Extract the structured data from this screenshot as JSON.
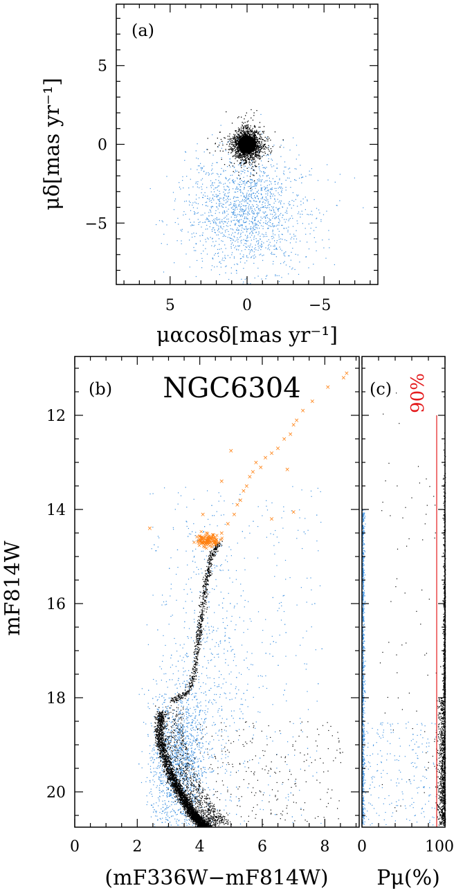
{
  "figure": {
    "title": "NGC6304"
  },
  "chart_data": [
    {
      "panel": "(a)",
      "type": "scatter",
      "title": "",
      "xlabel": "μαcosδ[mas yr⁻¹]",
      "ylabel": "μδ[mas yr⁻¹]",
      "xlim": [
        8.5,
        -8.5
      ],
      "ylim": [
        -8.9,
        8.9
      ],
      "x_inverted": true,
      "xticks": [
        5,
        0,
        -5
      ],
      "yticks": [
        5,
        0,
        -5
      ],
      "xtick_labels": [
        "5",
        "0",
        "−5"
      ],
      "ytick_labels": [
        "5",
        "0",
        "−5"
      ],
      "series": [
        {
          "color": "#000000",
          "description_values": {
            "center": [
              0.0,
              0.0
            ],
            "spread": 0.45,
            "n": 1800
          }
        },
        {
          "color": "#3a8fe0",
          "description_values": {
            "center": [
              0.0,
              -4.3
            ],
            "spread_x": 2.0,
            "spread_y": 1.9,
            "n": 1600
          }
        }
      ]
    },
    {
      "panel": "(b)",
      "type": "scatter",
      "title": "NGC6304",
      "xlabel": "(mF336W−mF814W)",
      "ylabel": "mF814W",
      "xlim": [
        0,
        9.1
      ],
      "ylim": [
        20.75,
        10.75
      ],
      "y_inverted": true,
      "xticks": [
        0,
        2,
        4,
        6,
        8
      ],
      "yticks": [
        12,
        14,
        16,
        18,
        20
      ],
      "xtick_labels": [
        "0",
        "2",
        "4",
        "6",
        "8"
      ],
      "ytick_labels": [
        "12",
        "14",
        "16",
        "18",
        "20"
      ],
      "sequence_points": {
        "x": [
          2.75,
          2.7,
          2.85,
          3.05,
          3.25,
          3.45,
          3.6,
          3.75,
          3.9,
          4.0,
          4.1,
          4.25
        ],
        "y": [
          18.3,
          18.8,
          19.2,
          19.6,
          19.9,
          20.1,
          20.3,
          20.45,
          20.55,
          20.65,
          20.7,
          20.75
        ]
      },
      "red_giant_branch": {
        "x": [
          3.1,
          3.6,
          3.8,
          3.9,
          4.0,
          4.1,
          4.2,
          4.35,
          4.6
        ],
        "y": [
          18.05,
          17.9,
          17.5,
          17.0,
          16.5,
          16.0,
          15.5,
          15.0,
          14.7
        ]
      },
      "highlighted_stars": {
        "color": "#ff7f0e",
        "x": [
          2.4,
          4.0,
          4.05,
          4.1,
          4.15,
          4.2,
          4.3,
          4.35,
          4.45,
          4.5,
          4.6,
          4.7,
          4.9,
          5.1,
          5.2,
          5.3,
          5.4,
          5.5,
          5.6,
          5.7,
          5.8,
          5.95,
          6.1,
          6.3,
          6.5,
          6.7,
          6.9,
          7.0,
          7.1,
          7.3,
          7.6,
          8.1,
          8.6,
          8.7,
          4.1,
          4.7,
          6.8,
          7.0,
          6.3,
          5.0
        ],
        "y": [
          14.4,
          14.65,
          14.7,
          14.6,
          14.7,
          14.55,
          14.65,
          14.7,
          14.6,
          14.75,
          14.7,
          14.5,
          14.3,
          14.1,
          13.9,
          13.8,
          13.6,
          13.5,
          13.3,
          13.2,
          13.0,
          13.1,
          12.9,
          12.8,
          12.7,
          12.5,
          12.4,
          12.2,
          12.1,
          11.9,
          11.7,
          11.4,
          11.2,
          11.1,
          14.1,
          13.4,
          13.15,
          14.05,
          14.2,
          12.75
        ]
      }
    },
    {
      "panel": "(c)",
      "type": "scatter",
      "title": "",
      "xlabel": "Pμ(%)",
      "ylabel": "",
      "xlim": [
        0,
        100
      ],
      "ylim": [
        20.75,
        10.75
      ],
      "xticks": [
        0,
        100
      ],
      "xtick_labels": [
        "0",
        "100"
      ],
      "threshold": {
        "value": 90,
        "label": "90%",
        "color": "#e41a1c",
        "from_mag": 12.0
      }
    }
  ]
}
